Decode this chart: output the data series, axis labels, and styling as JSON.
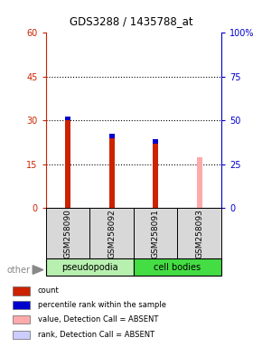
{
  "title": "GDS3288 / 1435788_at",
  "samples": [
    "GSM258090",
    "GSM258092",
    "GSM258091",
    "GSM258093"
  ],
  "ylim_left": [
    0,
    60
  ],
  "ylim_right": [
    0,
    100
  ],
  "yticks_left": [
    0,
    15,
    30,
    45,
    60
  ],
  "ytick_labels_left": [
    "0",
    "15",
    "30",
    "45",
    "60"
  ],
  "yticks_right": [
    0,
    25,
    50,
    75,
    100
  ],
  "ytick_labels_right": [
    "0",
    "25",
    "50",
    "75",
    "100%"
  ],
  "left_axis_color": "#cc2200",
  "right_axis_color": "#0000cc",
  "bar_data": [
    {
      "red_val": 30.0,
      "blue_val": 1.5,
      "pink_val": 0,
      "absent": false
    },
    {
      "red_val": 24.0,
      "blue_val": 1.5,
      "pink_val": 0,
      "absent": false
    },
    {
      "red_val": 22.0,
      "blue_val": 1.5,
      "pink_val": 0,
      "absent": false
    },
    {
      "red_val": 0,
      "blue_val": 0,
      "pink_val": 17.5,
      "absent": true
    }
  ],
  "bar_width": 0.12,
  "legend_items": [
    {
      "label": "count",
      "color": "#cc2200"
    },
    {
      "label": "percentile rank within the sample",
      "color": "#0000cc"
    },
    {
      "label": "value, Detection Call = ABSENT",
      "color": "#ffaaaa"
    },
    {
      "label": "rank, Detection Call = ABSENT",
      "color": "#ccccff"
    }
  ],
  "other_label": "other",
  "bg_color": "#d8d8d8",
  "pseudo_color": "#b8f0b0",
  "cell_color": "#44dd44",
  "plot_bg": "#ffffff"
}
